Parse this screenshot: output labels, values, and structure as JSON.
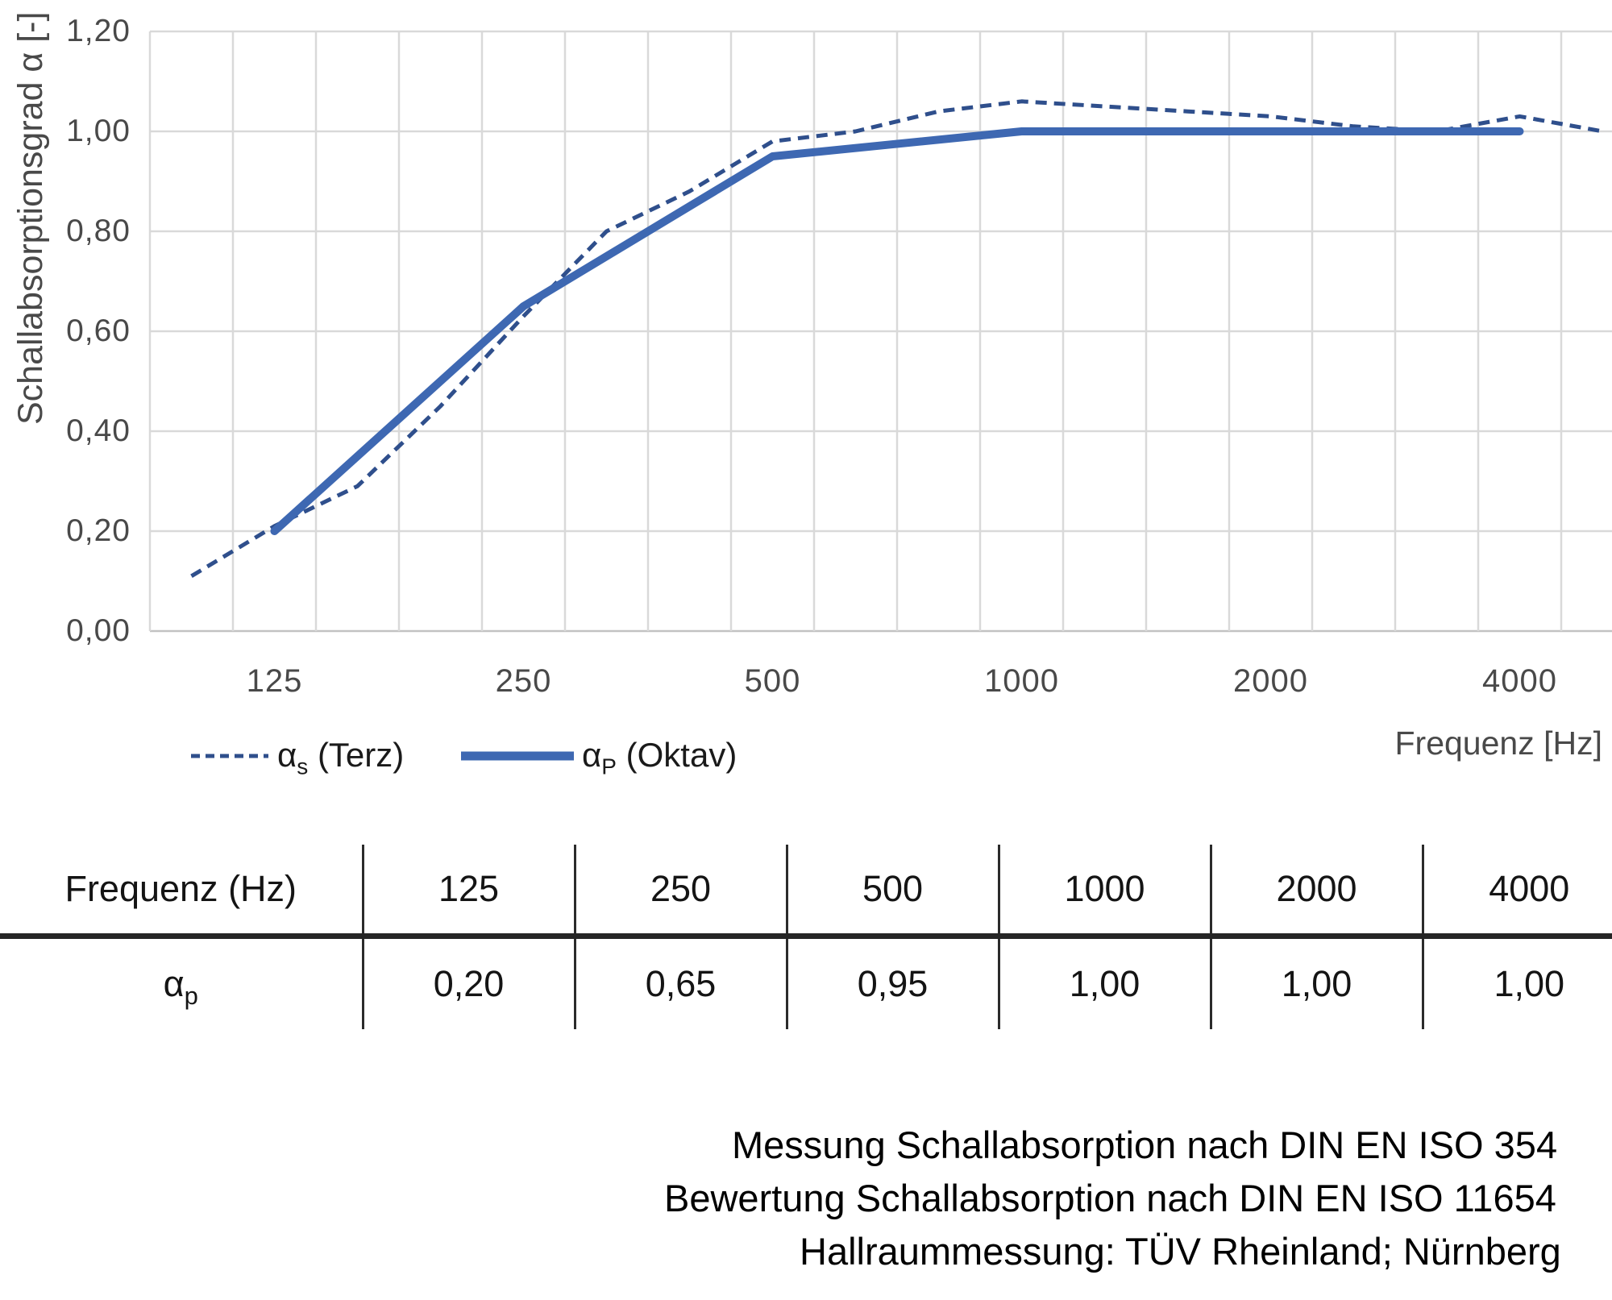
{
  "page": {
    "background": "#ffffff"
  },
  "colors": {
    "series_terz": "#2f4f8c",
    "series_oktav": "#3e68b2",
    "gridline": "#d9d9d9",
    "axis_line": "#c2c2c2",
    "axis_text": "#494949",
    "table_line": "#262626",
    "text": "#000000"
  },
  "chart_data": {
    "type": "line",
    "title": "",
    "xlabel": "Frequenz [Hz]",
    "ylabel": "Schallabsorptionsgrad α [-]",
    "x_scale": "logarithmic-third-octave",
    "grid": true,
    "legend_position": "bottom-left",
    "ylim": [
      0,
      1.2
    ],
    "x_categories": [
      100,
      125,
      160,
      200,
      250,
      315,
      400,
      500,
      630,
      800,
      1000,
      1250,
      1600,
      2000,
      2500,
      3150,
      4000,
      5000
    ],
    "x_ticks": [
      {
        "v": 125,
        "label": "125"
      },
      {
        "v": 250,
        "label": "250"
      },
      {
        "v": 500,
        "label": "500"
      },
      {
        "v": 1000,
        "label": "1000"
      },
      {
        "v": 2000,
        "label": "2000"
      },
      {
        "v": 4000,
        "label": "4000"
      }
    ],
    "y_ticks": [
      {
        "v": 1.2,
        "label": "1,20"
      },
      {
        "v": 1.0,
        "label": "1,00"
      },
      {
        "v": 0.8,
        "label": "0,80"
      },
      {
        "v": 0.6,
        "label": "0,60"
      },
      {
        "v": 0.4,
        "label": "0,40"
      },
      {
        "v": 0.2,
        "label": "0,20"
      },
      {
        "v": 0.0,
        "label": "0,00"
      }
    ],
    "series": [
      {
        "name": "αs (Terz)",
        "name_parts": {
          "alpha": "α",
          "sub": "s",
          "rest": " (Terz)"
        },
        "style": "dashed",
        "color": "#2f4f8c",
        "x": [
          100,
          125,
          160,
          200,
          250,
          315,
          400,
          500,
          630,
          800,
          1000,
          1250,
          1600,
          2000,
          2500,
          3150,
          4000,
          5000
        ],
        "values": [
          0.11,
          0.21,
          0.29,
          0.45,
          0.63,
          0.8,
          0.88,
          0.98,
          1.0,
          1.04,
          1.06,
          1.05,
          1.04,
          1.03,
          1.01,
          1.0,
          1.03,
          1.0
        ]
      },
      {
        "name": "αP (Oktav)",
        "name_parts": {
          "alpha": "α",
          "sub": "P",
          "rest": " (Oktav)"
        },
        "style": "solid",
        "color": "#3e68b2",
        "x": [
          125,
          250,
          500,
          1000,
          2000,
          4000
        ],
        "values": [
          0.2,
          0.65,
          0.95,
          1.0,
          1.0,
          1.0
        ]
      }
    ]
  },
  "table": {
    "header": [
      "Frequenz (Hz)",
      "125",
      "250",
      "500",
      "1000",
      "2000",
      "4000"
    ],
    "row_label": {
      "alpha": "α",
      "sub": "p"
    },
    "values": [
      "0,20",
      "0,65",
      "0,95",
      "1,00",
      "1,00",
      "1,00"
    ]
  },
  "footnote": {
    "line1": "Messung Schallabsorption nach DIN EN ISO 354",
    "line2": "Bewertung Schallabsorption nach DIN EN ISO 11654",
    "line3": "Hallraummessung: TÜV Rheinland; Nürnberg"
  }
}
